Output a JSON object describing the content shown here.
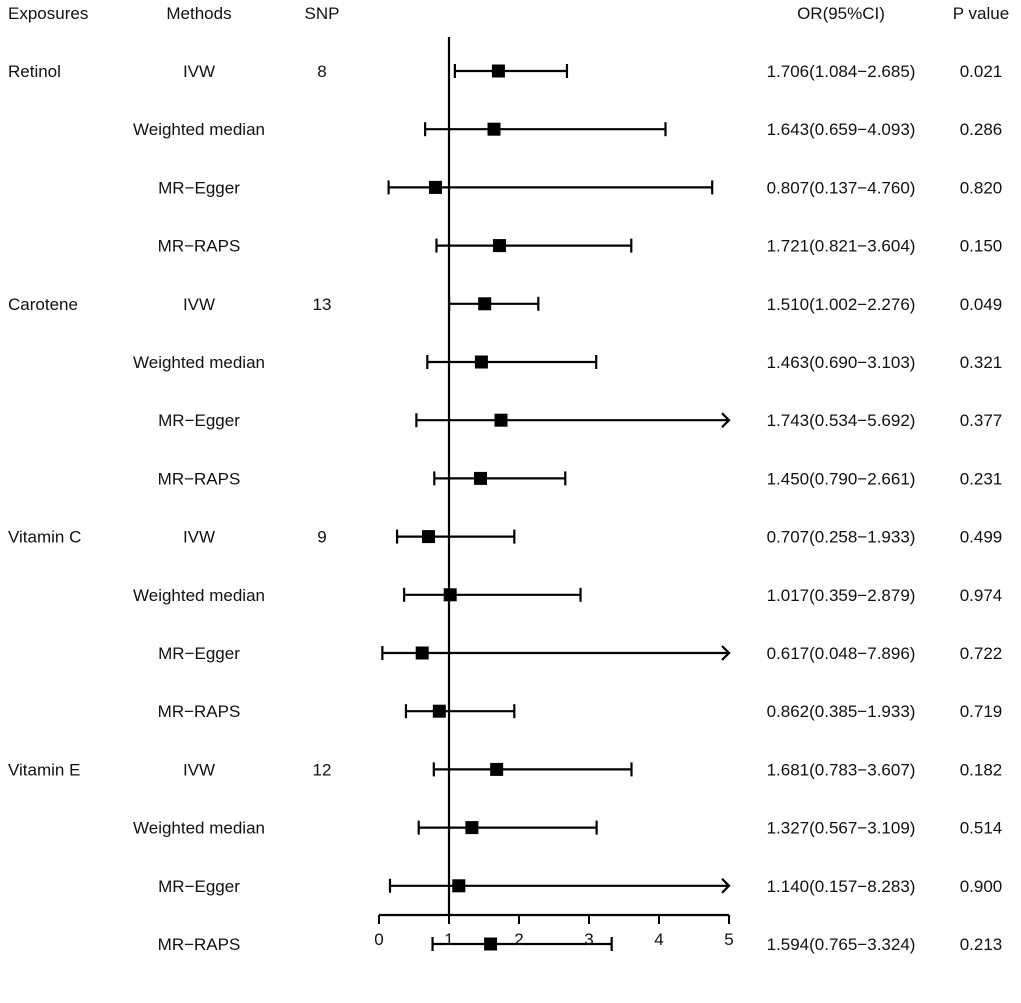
{
  "chart_data": {
    "type": "forest",
    "headers": {
      "exposures": "Exposures",
      "methods": "Methods",
      "snp": "SNP",
      "or_ci": "OR(95%CI)",
      "p_value": "P value"
    },
    "reference_line": 1,
    "xlim": [
      0,
      5
    ],
    "x_ticks": [
      "0",
      "1",
      "2",
      "3",
      "4",
      "5"
    ],
    "groups": [
      {
        "exposure": "Retinol",
        "snp": "8",
        "rows": [
          {
            "method": "IVW",
            "or": 1.706,
            "lower": 1.084,
            "upper": 2.685,
            "or_text": "1.706(1.084−2.685)",
            "p": "0.021",
            "arrow": false
          },
          {
            "method": "Weighted median",
            "or": 1.643,
            "lower": 0.659,
            "upper": 4.093,
            "or_text": "1.643(0.659−4.093)",
            "p": "0.286",
            "arrow": false
          },
          {
            "method": "MR−Egger",
            "or": 0.807,
            "lower": 0.137,
            "upper": 4.76,
            "or_text": "0.807(0.137−4.760)",
            "p": "0.820",
            "arrow": false
          },
          {
            "method": "MR−RAPS",
            "or": 1.721,
            "lower": 0.821,
            "upper": 3.604,
            "or_text": "1.721(0.821−3.604)",
            "p": "0.150",
            "arrow": false
          }
        ]
      },
      {
        "exposure": "Carotene",
        "snp": "13",
        "rows": [
          {
            "method": "IVW",
            "or": 1.51,
            "lower": 1.002,
            "upper": 2.276,
            "or_text": "1.510(1.002−2.276)",
            "p": "0.049",
            "arrow": false
          },
          {
            "method": "Weighted median",
            "or": 1.463,
            "lower": 0.69,
            "upper": 3.103,
            "or_text": "1.463(0.690−3.103)",
            "p": "0.321",
            "arrow": false
          },
          {
            "method": "MR−Egger",
            "or": 1.743,
            "lower": 0.534,
            "upper": 5.692,
            "or_text": "1.743(0.534−5.692)",
            "p": "0.377",
            "arrow": true
          },
          {
            "method": "MR−RAPS",
            "or": 1.45,
            "lower": 0.79,
            "upper": 2.661,
            "or_text": "1.450(0.790−2.661)",
            "p": "0.231",
            "arrow": false
          }
        ]
      },
      {
        "exposure": "Vitamin C",
        "snp": "9",
        "rows": [
          {
            "method": "IVW",
            "or": 0.707,
            "lower": 0.258,
            "upper": 1.933,
            "or_text": "0.707(0.258−1.933)",
            "p": "0.499",
            "arrow": false
          },
          {
            "method": "Weighted median",
            "or": 1.017,
            "lower": 0.359,
            "upper": 2.879,
            "or_text": "1.017(0.359−2.879)",
            "p": "0.974",
            "arrow": false
          },
          {
            "method": "MR−Egger",
            "or": 0.617,
            "lower": 0.048,
            "upper": 7.896,
            "or_text": "0.617(0.048−7.896)",
            "p": "0.722",
            "arrow": true
          },
          {
            "method": "MR−RAPS",
            "or": 0.862,
            "lower": 0.385,
            "upper": 1.933,
            "or_text": "0.862(0.385−1.933)",
            "p": "0.719",
            "arrow": false
          }
        ]
      },
      {
        "exposure": "Vitamin E",
        "snp": "12",
        "rows": [
          {
            "method": "IVW",
            "or": 1.681,
            "lower": 0.783,
            "upper": 3.607,
            "or_text": "1.681(0.783−3.607)",
            "p": "0.182",
            "arrow": false
          },
          {
            "method": "Weighted median",
            "or": 1.327,
            "lower": 0.567,
            "upper": 3.109,
            "or_text": "1.327(0.567−3.109)",
            "p": "0.514",
            "arrow": false
          },
          {
            "method": "MR−Egger",
            "or": 1.14,
            "lower": 0.157,
            "upper": 8.283,
            "or_text": "1.140(0.157−8.283)",
            "p": "0.900",
            "arrow": true
          },
          {
            "method": "MR−RAPS",
            "or": 1.594,
            "lower": 0.765,
            "upper": 3.324,
            "or_text": "1.594(0.765−3.324)",
            "p": "0.213",
            "arrow": false
          }
        ]
      }
    ]
  }
}
